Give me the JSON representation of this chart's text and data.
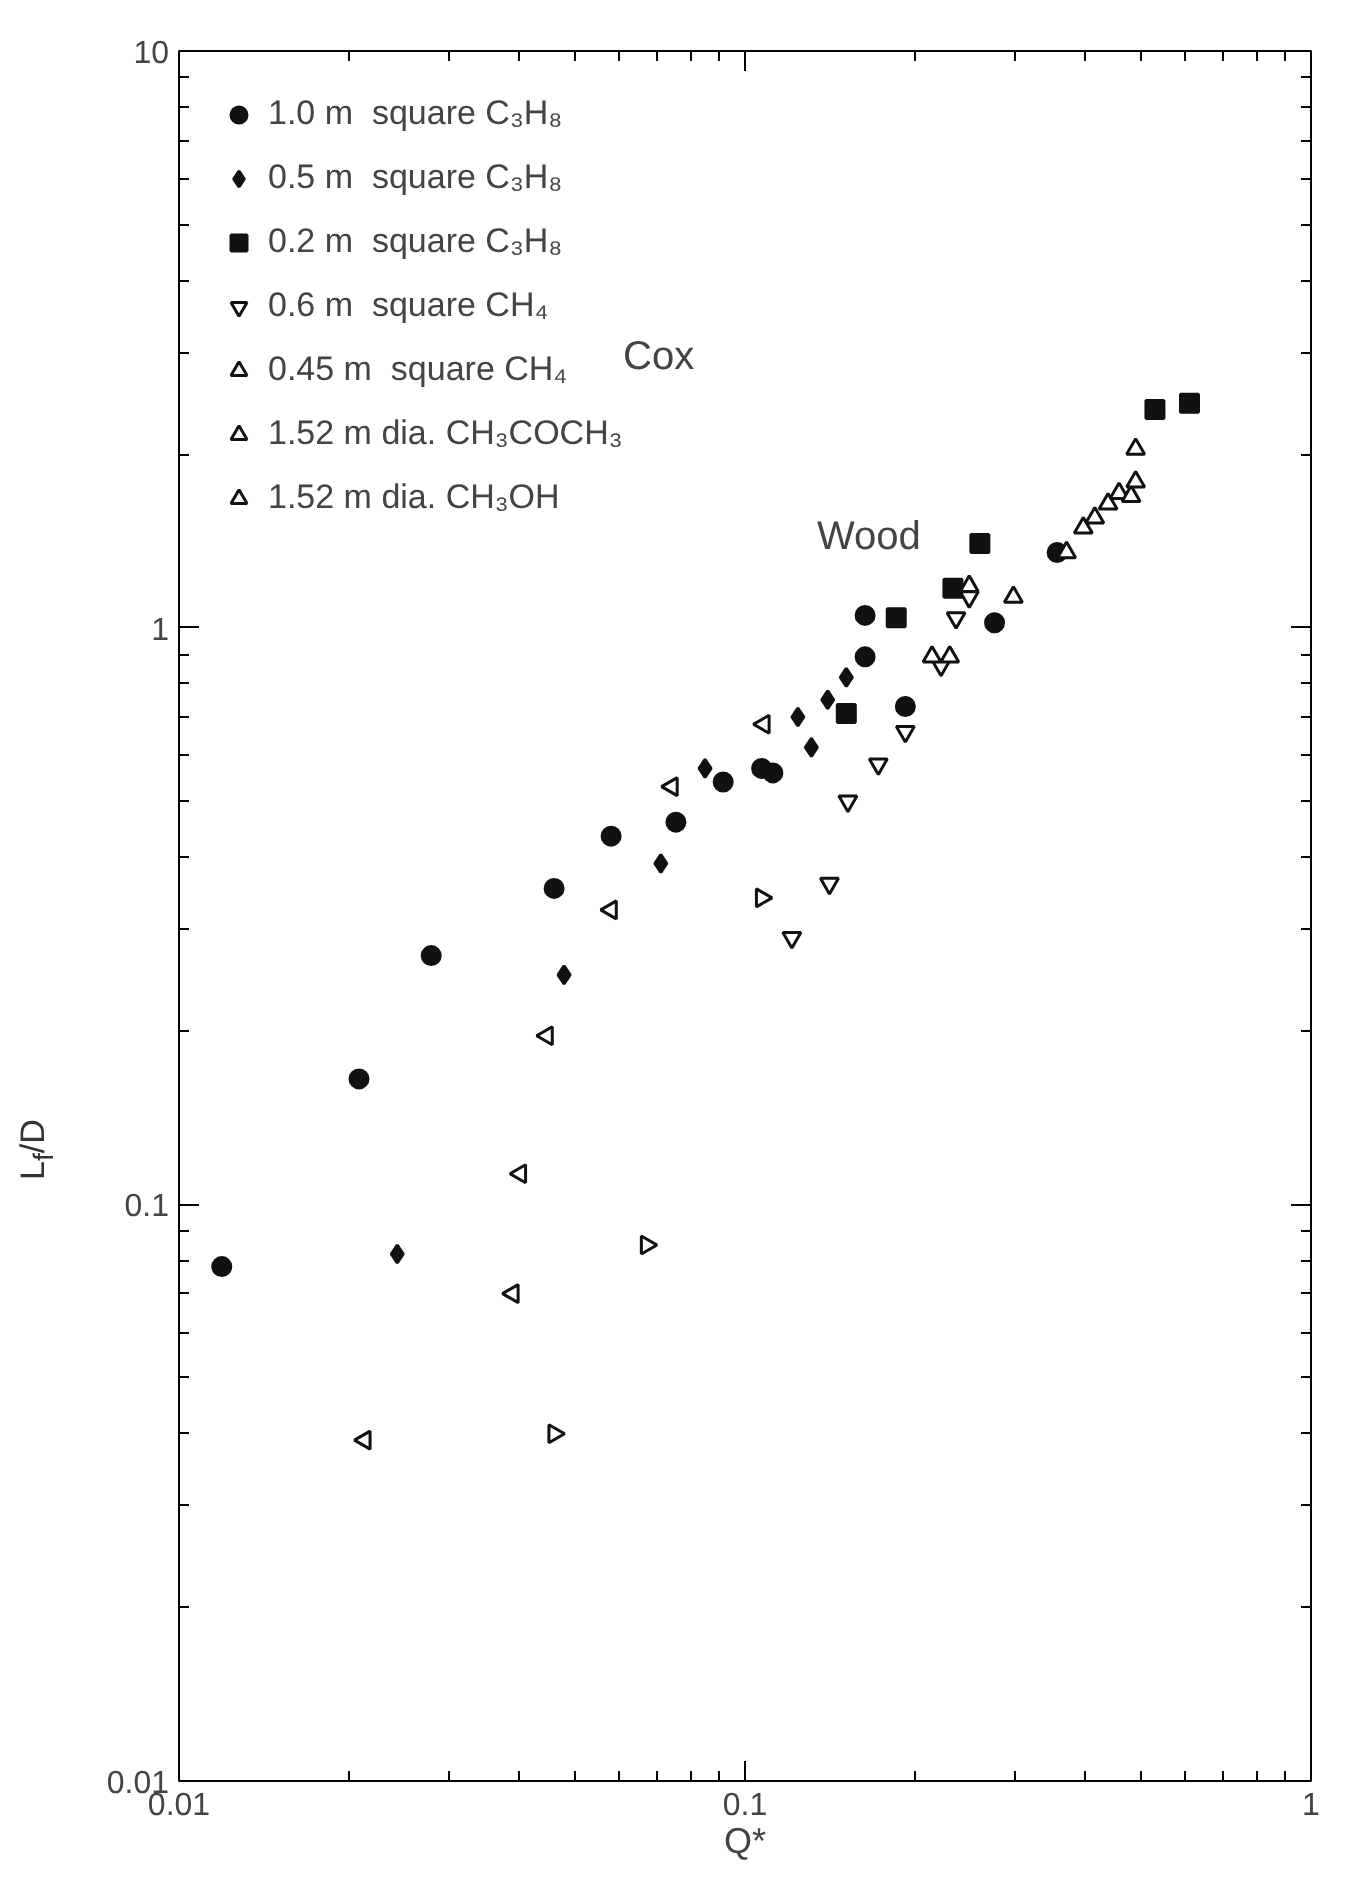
{
  "chart_data": {
    "type": "scatter",
    "xlabel": "Q*",
    "ylabel": "L$_{f}$/D",
    "log": "xy",
    "xlim": [
      0.01,
      1
    ],
    "ylim": [
      0.01,
      10
    ],
    "xticks": [
      0.01,
      0.1,
      1
    ],
    "yticks": [
      0.01,
      0.1,
      1,
      10
    ],
    "grid": false,
    "legend": "top left",
    "annotations": [
      "Cox",
      "Wood"
    ],
    "series": [
      {
        "name": "1.0 m  square C₃H₈",
        "color": "#111111",
        "marker": "circle",
        "x": [
          0.0119,
          0.0208,
          0.0279,
          0.046,
          0.058,
          0.0755,
          0.0915,
          0.107,
          0.112,
          0.163,
          0.163,
          0.192,
          0.276,
          0.356
        ],
        "values": [
          0.078,
          0.165,
          0.27,
          0.353,
          0.435,
          0.46,
          0.54,
          0.57,
          0.56,
          0.89,
          1.05,
          0.73,
          1.02,
          1.35
        ]
      },
      {
        "name": "0.5 m  square C₃H₈",
        "color": "#111111",
        "marker": "diamond",
        "x": [
          0.0243,
          0.0479,
          0.071,
          0.085,
          0.124,
          0.131,
          0.14,
          0.151
        ],
        "values": [
          0.082,
          0.25,
          0.39,
          0.57,
          0.7,
          0.62,
          0.75,
          0.82
        ]
      },
      {
        "name": "0.2 m  square C₃H₈",
        "color": "#111111",
        "marker": "square",
        "x": [
          0.151,
          0.185,
          0.233,
          0.26,
          0.53,
          0.61
        ],
        "values": [
          0.71,
          1.04,
          1.17,
          1.4,
          2.39,
          2.45
        ]
      },
      {
        "name": "0.6 m  square CH₄",
        "color": "#111111",
        "marker": "triangle",
        "x": [
          0.121,
          0.141,
          0.152,
          0.172,
          0.192,
          0.222,
          0.236,
          0.249
        ],
        "values": [
          0.29,
          0.36,
          0.5,
          0.58,
          0.66,
          0.86,
          1.04,
          1.13
        ]
      },
      {
        "name": "0.45 m  square CH₄",
        "color": "#111111",
        "marker": "triangle",
        "x": [
          0.214,
          0.23,
          0.249,
          0.298,
          0.37,
          0.396,
          0.415,
          0.438,
          0.458,
          0.481,
          0.49,
          0.49
        ],
        "values": [
          0.89,
          0.89,
          1.18,
          1.13,
          1.35,
          1.49,
          1.55,
          1.64,
          1.71,
          1.69,
          1.79,
          2.04
        ]
      },
      {
        "name": "1.52 m dia. CH₃COCH₃",
        "color": "#111111",
        "marker": "triangle",
        "x": [
          0.0213,
          0.0389,
          0.0401,
          0.0447,
          0.058,
          0.0743,
          0.108
        ],
        "values": [
          0.039,
          0.07,
          0.113,
          0.196,
          0.324,
          0.53,
          0.68
        ]
      },
      {
        "name": "1.52 m dia. CH₃OH",
        "color": "#111111",
        "marker": "triangle",
        "x": [
          0.046,
          0.067,
          0.107
        ],
        "values": [
          0.04,
          0.085,
          0.34
        ]
      }
    ]
  }
}
